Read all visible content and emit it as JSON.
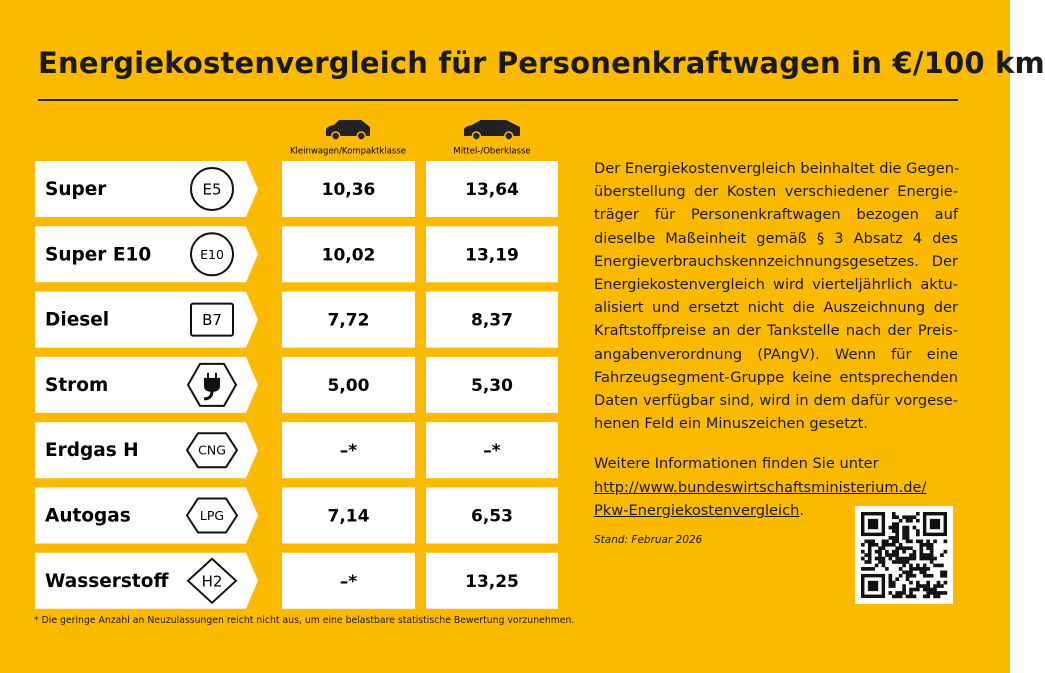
{
  "header": {
    "title": "Energiekostenvergleich für Personenkraftwagen in €/100 km"
  },
  "table": {
    "columns": [
      "Kleinwagen/Kompaktklasse",
      "Mittel-/Oberklasse"
    ],
    "rows": [
      {
        "fuel": "Super",
        "badge": "E5",
        "values": [
          "10,36",
          "13,64"
        ]
      },
      {
        "fuel": "Super E10",
        "badge": "E10",
        "values": [
          "10,02",
          "13,19"
        ]
      },
      {
        "fuel": "Diesel",
        "badge": "B7",
        "values": [
          "7,72",
          "8,37"
        ]
      },
      {
        "fuel": "Strom",
        "badge": null,
        "values": [
          "5,00",
          "5,30"
        ]
      },
      {
        "fuel": "Erdgas H",
        "badge": "CNG",
        "values": [
          "–*",
          "–*"
        ]
      },
      {
        "fuel": "Autogas",
        "badge": "LPG",
        "values": [
          "7,14",
          "6,53"
        ]
      },
      {
        "fuel": "Wasserstoff",
        "badge": "H2",
        "values": [
          "–*",
          "13,25"
        ]
      }
    ]
  },
  "description": {
    "lines": [
      "Der Energiekostenvergleich beinhaltet die Gegen-",
      "überstellung der Kosten verschiedener Energie-",
      "träger für Personenkraftwagen bezogen auf",
      "dieselbe Maßeinheit gemäß § 3 Absatz 4 des",
      "Energieverbrauchskennzeichnungsgesetzes. Der",
      "Energiekostenvergleich wird vierteljährlich aktu-",
      "alisiert und ersetzt nicht die Auszeichnung der",
      "Kraftstoffpreise an der Tankstelle nach der Preis-",
      "angabenverordnung (PAngV). Wenn für eine",
      "Fahrzeugsegment-Gruppe keine entsprechenden",
      "Daten verfügbar sind, wird in dem dafür vorgese-",
      "henen Feld ein Minuszeichen gesetzt."
    ]
  },
  "more_info": {
    "text": "Weitere Informationen finden Sie unter",
    "link_lines": [
      "http://www.bundeswirtschaftsministerium.de/",
      "Pkw-Energiekostenvergleich"
    ],
    "after_link": "."
  },
  "status": "Stand: Februar 2026",
  "footnote": "* Die geringe Anzahl an Neuzulassungen reicht nicht aus, um eine belastbare statistische Bewertung vorzunehmen."
}
